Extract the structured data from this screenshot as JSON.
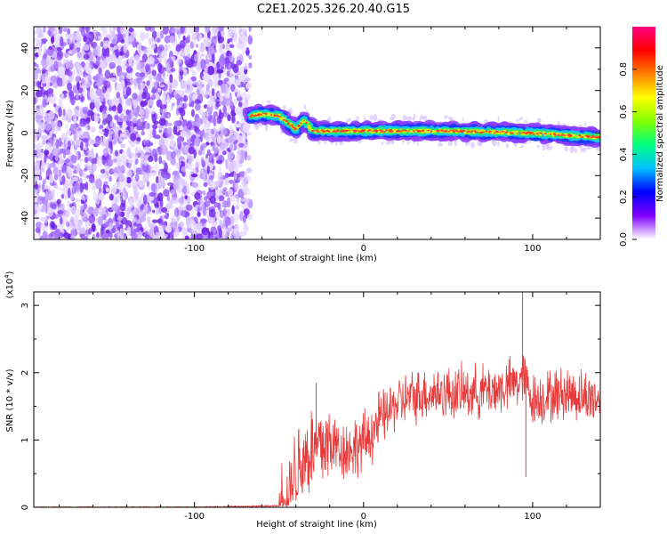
{
  "title": "C2E1.2025.326.20.40.G15",
  "colors": {
    "background": "#ffffff",
    "axis": "#000000",
    "snr_line": "#e83a3a",
    "noise_purple": "#7a2df0"
  },
  "chart_data": [
    {
      "type": "heatmap",
      "title": "C2E1.2025.326.20.40.G15",
      "xlabel": "Height of straight line (km)",
      "ylabel": "Frequency (Hz)",
      "xlim": [
        -195,
        140
      ],
      "ylim": [
        -50,
        50
      ],
      "xticks": [
        -100,
        0,
        100
      ],
      "xtick_labels": [
        "-100",
        "0",
        "100"
      ],
      "yticks": [
        -40,
        -20,
        0,
        20,
        40
      ],
      "ytick_labels": [
        "-40",
        "-20",
        "0",
        "20",
        "40"
      ],
      "colorbar": {
        "label": "Normalized spectral amplitude",
        "range": [
          0.0,
          1.0
        ],
        "ticks": [
          0.0,
          0.2,
          0.4,
          0.6,
          0.8
        ],
        "tick_labels": [
          "0.0",
          "0.2",
          "0.4",
          "0.6",
          "0.8"
        ],
        "colors": [
          "#ffffff",
          "#8000ff",
          "#0000ff",
          "#00bfff",
          "#00ff80",
          "#80ff00",
          "#ffff00",
          "#ff8000",
          "#ff0000",
          "#ff0080"
        ]
      },
      "noise_region": {
        "x": [
          -195,
          -67
        ],
        "freq": [
          -50,
          50
        ]
      },
      "signal_track": {
        "x": [
          -67,
          -60,
          -50,
          -45,
          -40,
          -35,
          -30,
          -20,
          0,
          50,
          100,
          140
        ],
        "freq": [
          8,
          9,
          8,
          5,
          2,
          6,
          1,
          1,
          1,
          1,
          0,
          -2
        ]
      }
    },
    {
      "type": "line",
      "xlabel": "Height of straight line (km)",
      "ylabel": "SNR (10 * v/v)",
      "scale_label": "(x10",
      "scale_exponent": "4",
      "xlim": [
        -195,
        140
      ],
      "ylim": [
        0,
        3.2
      ],
      "xticks": [
        -100,
        0,
        100
      ],
      "xtick_labels": [
        "-100",
        "0",
        "100"
      ],
      "yticks": [
        0,
        1,
        2,
        3
      ],
      "ytick_labels": [
        "0",
        "1",
        "2",
        "3"
      ],
      "series": [
        {
          "name": "SNR",
          "x": [
            -195,
            -100,
            -50,
            -45,
            -40,
            -35,
            -30,
            -25,
            -20,
            -10,
            0,
            10,
            20,
            30,
            40,
            60,
            80,
            95,
            100,
            120,
            140
          ],
          "values": [
            0.0,
            0.0,
            0.02,
            0.1,
            0.55,
            0.75,
            0.85,
            0.9,
            0.95,
            0.85,
            0.95,
            1.3,
            1.55,
            1.65,
            1.7,
            1.7,
            1.75,
            1.9,
            1.6,
            1.7,
            1.6
          ]
        }
      ],
      "spikes": [
        {
          "x": 94,
          "value": 3.2
        },
        {
          "x": -28,
          "value": 1.85
        },
        {
          "x": 96,
          "value": 0.45
        }
      ]
    }
  ]
}
